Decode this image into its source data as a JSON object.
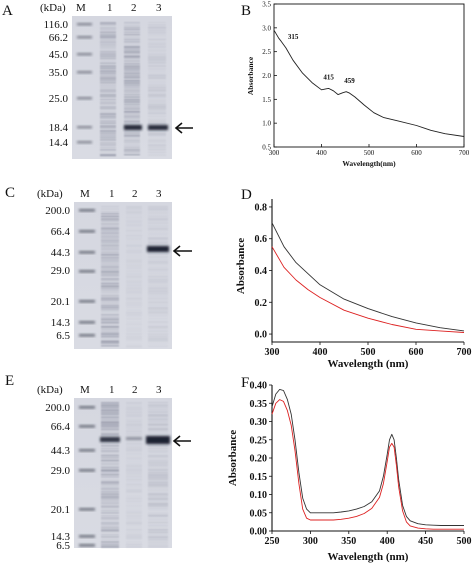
{
  "panels": {
    "A": "A",
    "B": "B",
    "C": "C",
    "D": "D",
    "E": "E",
    "F": "F"
  },
  "gels": [
    {
      "kda": "(kDa)",
      "lanes": [
        "M",
        "1",
        "2",
        "3"
      ],
      "markers": [
        "116.0",
        "66.2",
        "45.0",
        "35.0",
        "25.0",
        "18.4",
        "14.4"
      ]
    },
    {
      "kda": "(kDa)",
      "lanes": [
        "M",
        "1",
        "2",
        "3"
      ],
      "markers": [
        "200.0",
        "66.4",
        "44.3",
        "29.0",
        "20.1",
        "14.3",
        "6.5"
      ]
    },
    {
      "kda": "(kDa)",
      "lanes": [
        "M",
        "1",
        "2",
        "3"
      ],
      "markers": [
        "200.0",
        "66.4",
        "44.3",
        "29.0",
        "20.1",
        "14.3",
        "6.5"
      ]
    }
  ],
  "chart_data": [
    {
      "type": "line",
      "panel": "B",
      "xlabel": "Wavelength(nm)",
      "ylabel": "Absorbance",
      "xlim": [
        300,
        700
      ],
      "ylim": [
        0.5,
        3.5
      ],
      "xticks": [
        "300",
        "400",
        "500",
        "600",
        "700"
      ],
      "yticks": [
        "0.5",
        "1.0",
        "1.5",
        "2.0",
        "2.5",
        "3.0",
        "3.5"
      ],
      "annotations": [
        {
          "text": "315",
          "x": 315,
          "y": 2.7
        },
        {
          "text": "415",
          "x": 415,
          "y": 1.85
        },
        {
          "text": "459",
          "x": 459,
          "y": 1.78
        }
      ],
      "series": [
        {
          "color": "#222222",
          "x": [
            300,
            310,
            315,
            325,
            340,
            360,
            380,
            400,
            410,
            415,
            425,
            435,
            445,
            452,
            459,
            470,
            490,
            510,
            530,
            560,
            600,
            630,
            660,
            700
          ],
          "y": [
            2.95,
            2.78,
            2.72,
            2.58,
            2.32,
            2.05,
            1.85,
            1.7,
            1.72,
            1.73,
            1.68,
            1.6,
            1.64,
            1.66,
            1.63,
            1.55,
            1.38,
            1.22,
            1.12,
            1.05,
            0.95,
            0.85,
            0.78,
            0.72
          ]
        }
      ]
    },
    {
      "type": "line",
      "panel": "D",
      "xlabel": "Wavelength (nm)",
      "ylabel": "Absorbance",
      "xlim": [
        300,
        700
      ],
      "ylim": [
        -0.05,
        0.85
      ],
      "xticks": [
        "300",
        "400",
        "500",
        "600",
        "700"
      ],
      "yticks": [
        "0.0",
        "0.2",
        "0.4",
        "0.6",
        "0.8"
      ],
      "series": [
        {
          "color": "#333333",
          "x": [
            300,
            325,
            350,
            375,
            400,
            450,
            500,
            550,
            600,
            650,
            700
          ],
          "y": [
            0.7,
            0.55,
            0.45,
            0.38,
            0.31,
            0.22,
            0.16,
            0.11,
            0.07,
            0.04,
            0.02
          ]
        },
        {
          "color": "#dd2222",
          "x": [
            300,
            325,
            350,
            375,
            400,
            450,
            500,
            550,
            600,
            650,
            700
          ],
          "y": [
            0.55,
            0.42,
            0.34,
            0.28,
            0.23,
            0.15,
            0.1,
            0.06,
            0.03,
            0.02,
            0.01
          ]
        }
      ]
    },
    {
      "type": "line",
      "panel": "F",
      "xlabel": "Wavelength (nm)",
      "ylabel": "Absorbance",
      "xlim": [
        250,
        500
      ],
      "ylim": [
        0.0,
        0.4
      ],
      "xticks": [
        "250",
        "300",
        "350",
        "400",
        "450",
        "500"
      ],
      "yticks": [
        "0.00",
        "0.05",
        "0.10",
        "0.15",
        "0.20",
        "0.25",
        "0.30",
        "0.35",
        "0.40"
      ],
      "series": [
        {
          "color": "#333333",
          "x": [
            250,
            255,
            260,
            265,
            270,
            275,
            280,
            285,
            290,
            295,
            300,
            310,
            320,
            330,
            340,
            350,
            360,
            370,
            380,
            390,
            395,
            400,
            403,
            406,
            409,
            412,
            415,
            420,
            425,
            430,
            440,
            450,
            460,
            470,
            480,
            490,
            500
          ],
          "y": [
            0.34,
            0.375,
            0.388,
            0.385,
            0.36,
            0.32,
            0.25,
            0.16,
            0.09,
            0.06,
            0.05,
            0.05,
            0.05,
            0.05,
            0.052,
            0.055,
            0.06,
            0.067,
            0.08,
            0.11,
            0.15,
            0.21,
            0.25,
            0.265,
            0.25,
            0.2,
            0.14,
            0.07,
            0.04,
            0.028,
            0.02,
            0.017,
            0.016,
            0.015,
            0.015,
            0.015,
            0.015
          ]
        },
        {
          "color": "#dd2222",
          "x": [
            250,
            255,
            260,
            265,
            270,
            275,
            280,
            285,
            290,
            295,
            300,
            310,
            320,
            330,
            340,
            350,
            360,
            370,
            380,
            390,
            395,
            400,
            403,
            406,
            409,
            412,
            415,
            420,
            425,
            430,
            440,
            450,
            460,
            470,
            480,
            490,
            500
          ],
          "y": [
            0.32,
            0.35,
            0.36,
            0.355,
            0.33,
            0.29,
            0.22,
            0.13,
            0.06,
            0.035,
            0.03,
            0.03,
            0.03,
            0.03,
            0.032,
            0.035,
            0.04,
            0.048,
            0.062,
            0.092,
            0.13,
            0.19,
            0.23,
            0.24,
            0.23,
            0.18,
            0.12,
            0.055,
            0.025,
            0.014,
            0.008,
            0.006,
            0.005,
            0.005,
            0.005,
            0.005,
            0.005
          ]
        }
      ]
    }
  ]
}
